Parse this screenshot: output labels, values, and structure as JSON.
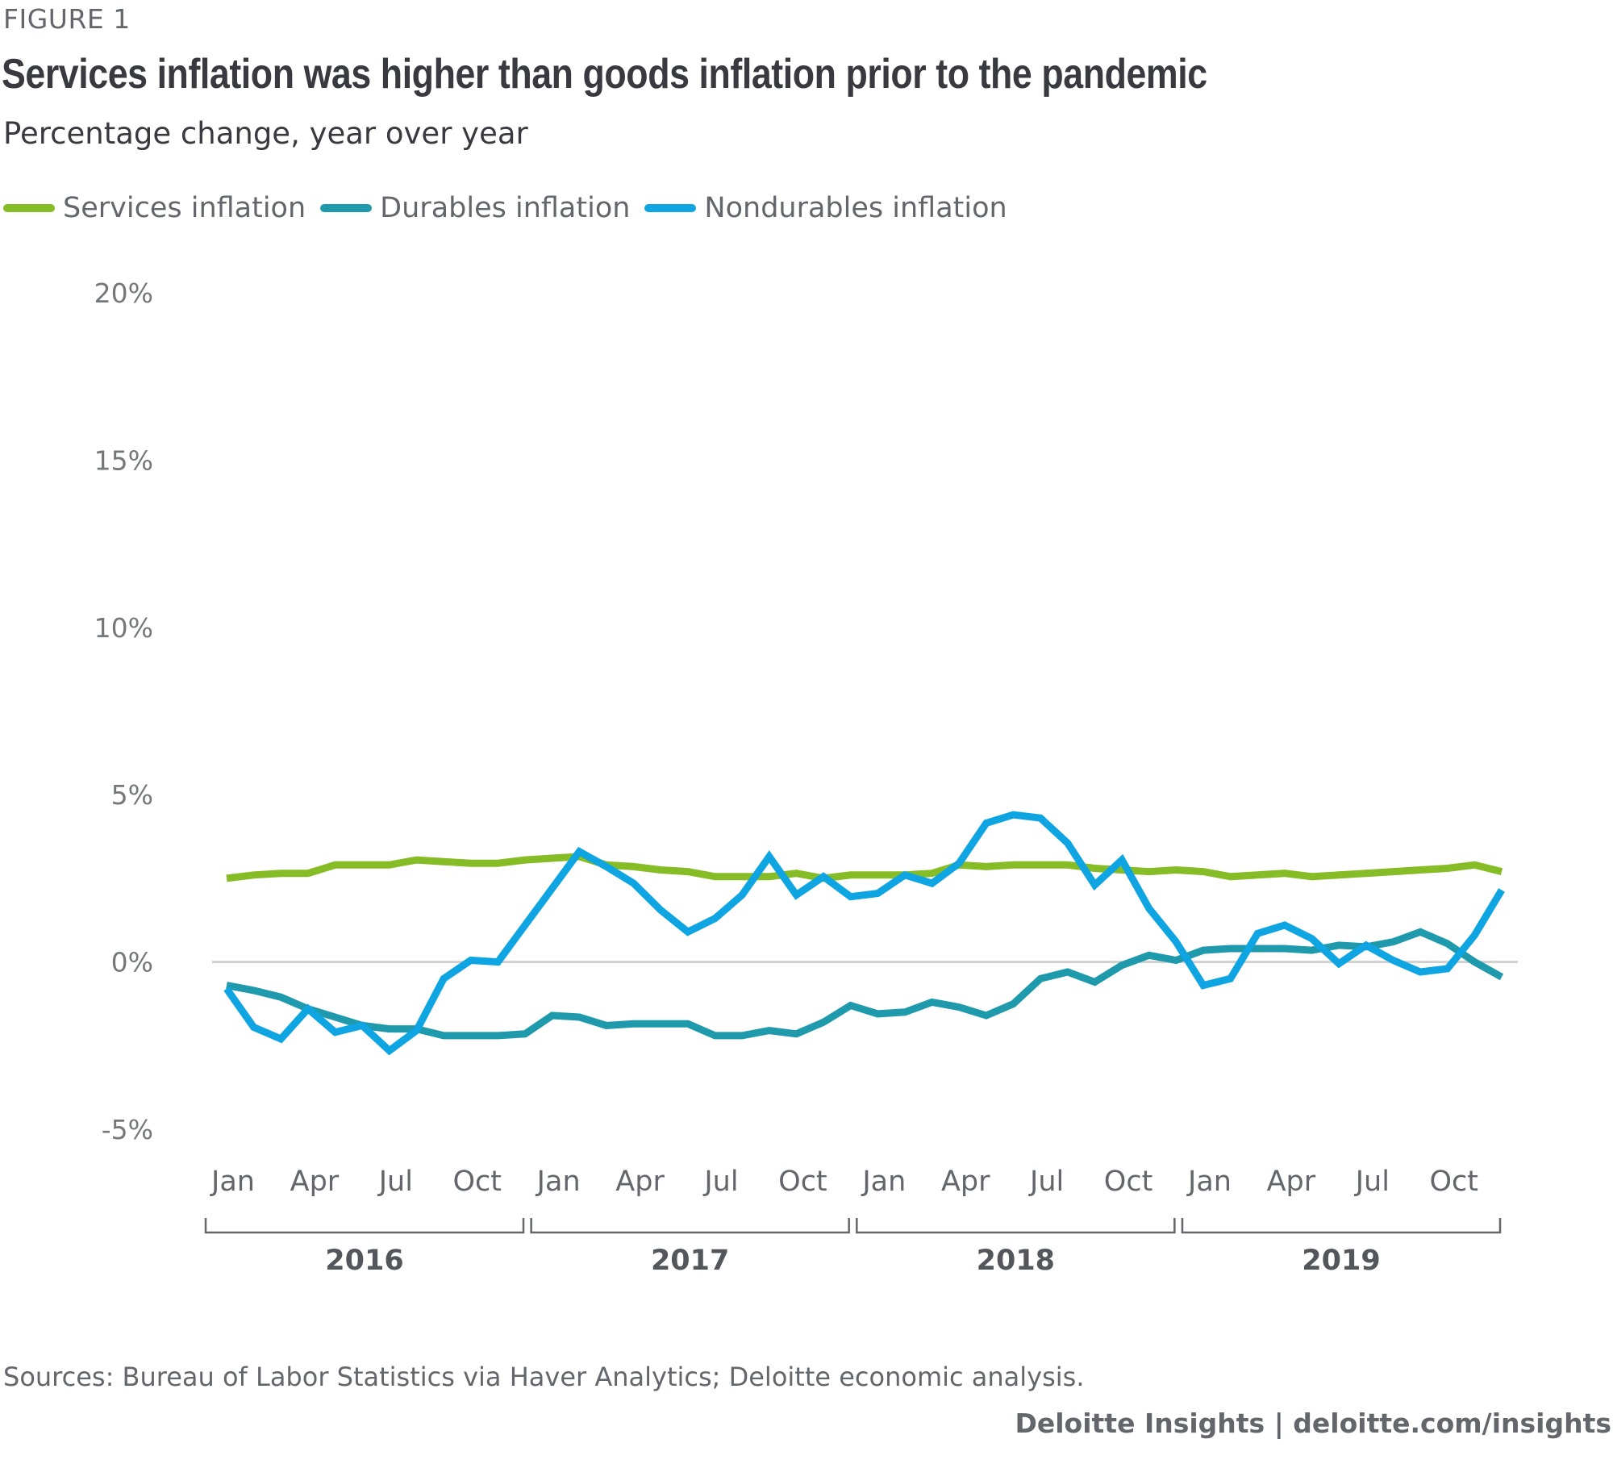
{
  "figure_label": "FIGURE 1",
  "title": "Services inflation was higher than goods inflation prior to the pandemic",
  "subtitle": "Percentage change, year over year",
  "source": "Sources: Bureau of Labor Statistics via Haver Analytics; Deloitte economic analysis.",
  "brand": {
    "name": "Deloitte Insights",
    "separator": "|",
    "url": "deloitte.com/insights"
  },
  "chart_data": {
    "type": "line",
    "title": "Services inflation was higher than goods inflation prior to the pandemic",
    "subtitle": "Percentage change, year over year",
    "xlabel": "",
    "ylabel": "",
    "ylim": [
      -5,
      20
    ],
    "y_ticks": [
      20,
      15,
      10,
      5,
      0,
      -5
    ],
    "y_tick_labels": [
      "20%",
      "15%",
      "10%",
      "5%",
      "0%",
      "-5%"
    ],
    "x_tick_labels": [
      "Jan",
      "Apr",
      "Jul",
      "Oct",
      "Jan",
      "Apr",
      "Jul",
      "Oct",
      "Jan",
      "Apr",
      "Jul",
      "Oct",
      "Jan",
      "Apr",
      "Jul",
      "Oct"
    ],
    "x_tick_month_index": [
      0,
      3,
      6,
      9,
      12,
      15,
      18,
      21,
      24,
      27,
      30,
      33,
      36,
      39,
      42,
      45
    ],
    "year_groups": [
      {
        "label": "2016",
        "start": 0,
        "end": 11
      },
      {
        "label": "2017",
        "start": 12,
        "end": 23
      },
      {
        "label": "2018",
        "start": 24,
        "end": 35
      },
      {
        "label": "2019",
        "start": 36,
        "end": 47
      }
    ],
    "x": [
      "2016-01",
      "2016-02",
      "2016-03",
      "2016-04",
      "2016-05",
      "2016-06",
      "2016-07",
      "2016-08",
      "2016-09",
      "2016-10",
      "2016-11",
      "2016-12",
      "2017-01",
      "2017-02",
      "2017-03",
      "2017-04",
      "2017-05",
      "2017-06",
      "2017-07",
      "2017-08",
      "2017-09",
      "2017-10",
      "2017-11",
      "2017-12",
      "2018-01",
      "2018-02",
      "2018-03",
      "2018-04",
      "2018-05",
      "2018-06",
      "2018-07",
      "2018-08",
      "2018-09",
      "2018-10",
      "2018-11",
      "2018-12",
      "2019-01",
      "2019-02",
      "2019-03",
      "2019-04",
      "2019-05",
      "2019-06",
      "2019-07",
      "2019-08",
      "2019-09",
      "2019-10",
      "2019-11",
      "2019-12"
    ],
    "grid": false,
    "zero_line": true,
    "legend_position": "top-left",
    "series": [
      {
        "name": "Services inflation",
        "color": "#86bc25",
        "values": [
          2.5,
          2.6,
          2.65,
          2.65,
          2.9,
          2.9,
          2.9,
          3.05,
          3.0,
          2.95,
          2.95,
          3.05,
          3.1,
          3.15,
          2.9,
          2.85,
          2.75,
          2.7,
          2.55,
          2.55,
          2.55,
          2.65,
          2.5,
          2.6,
          2.6,
          2.6,
          2.65,
          2.9,
          2.85,
          2.9,
          2.9,
          2.9,
          2.8,
          2.75,
          2.7,
          2.75,
          2.7,
          2.55,
          2.6,
          2.65,
          2.55,
          2.6,
          2.65,
          2.7,
          2.75,
          2.8,
          2.9,
          2.7
        ]
      },
      {
        "name": "Durables inflation",
        "color": "#1f9aad",
        "values": [
          -0.7,
          -0.85,
          -1.05,
          -1.4,
          -1.65,
          -1.9,
          -2.0,
          -2.0,
          -2.2,
          -2.2,
          -2.2,
          -2.15,
          -1.6,
          -1.65,
          -1.9,
          -1.85,
          -1.85,
          -1.85,
          -2.2,
          -2.2,
          -2.05,
          -2.15,
          -1.8,
          -1.3,
          -1.55,
          -1.5,
          -1.2,
          -1.35,
          -1.6,
          -1.25,
          -0.5,
          -0.3,
          -0.6,
          -0.1,
          0.2,
          0.05,
          0.35,
          0.4,
          0.4,
          0.4,
          0.35,
          0.5,
          0.45,
          0.6,
          0.9,
          0.55,
          0.0,
          -0.45
        ]
      },
      {
        "name": "Nondurables inflation",
        "color": "#0ea5e2",
        "values": [
          -0.8,
          -1.95,
          -2.3,
          -1.4,
          -2.1,
          -1.9,
          -2.65,
          -2.05,
          -0.5,
          0.05,
          0.0,
          1.1,
          2.2,
          3.3,
          2.85,
          2.35,
          1.55,
          0.9,
          1.3,
          2.0,
          3.15,
          2.0,
          2.55,
          1.95,
          2.05,
          2.6,
          2.35,
          2.95,
          4.15,
          4.4,
          4.3,
          3.55,
          2.3,
          3.05,
          1.6,
          0.6,
          -0.7,
          -0.5,
          0.85,
          1.1,
          0.7,
          -0.05,
          0.5,
          0.05,
          -0.3,
          -0.2,
          0.8,
          2.15
        ]
      }
    ]
  }
}
